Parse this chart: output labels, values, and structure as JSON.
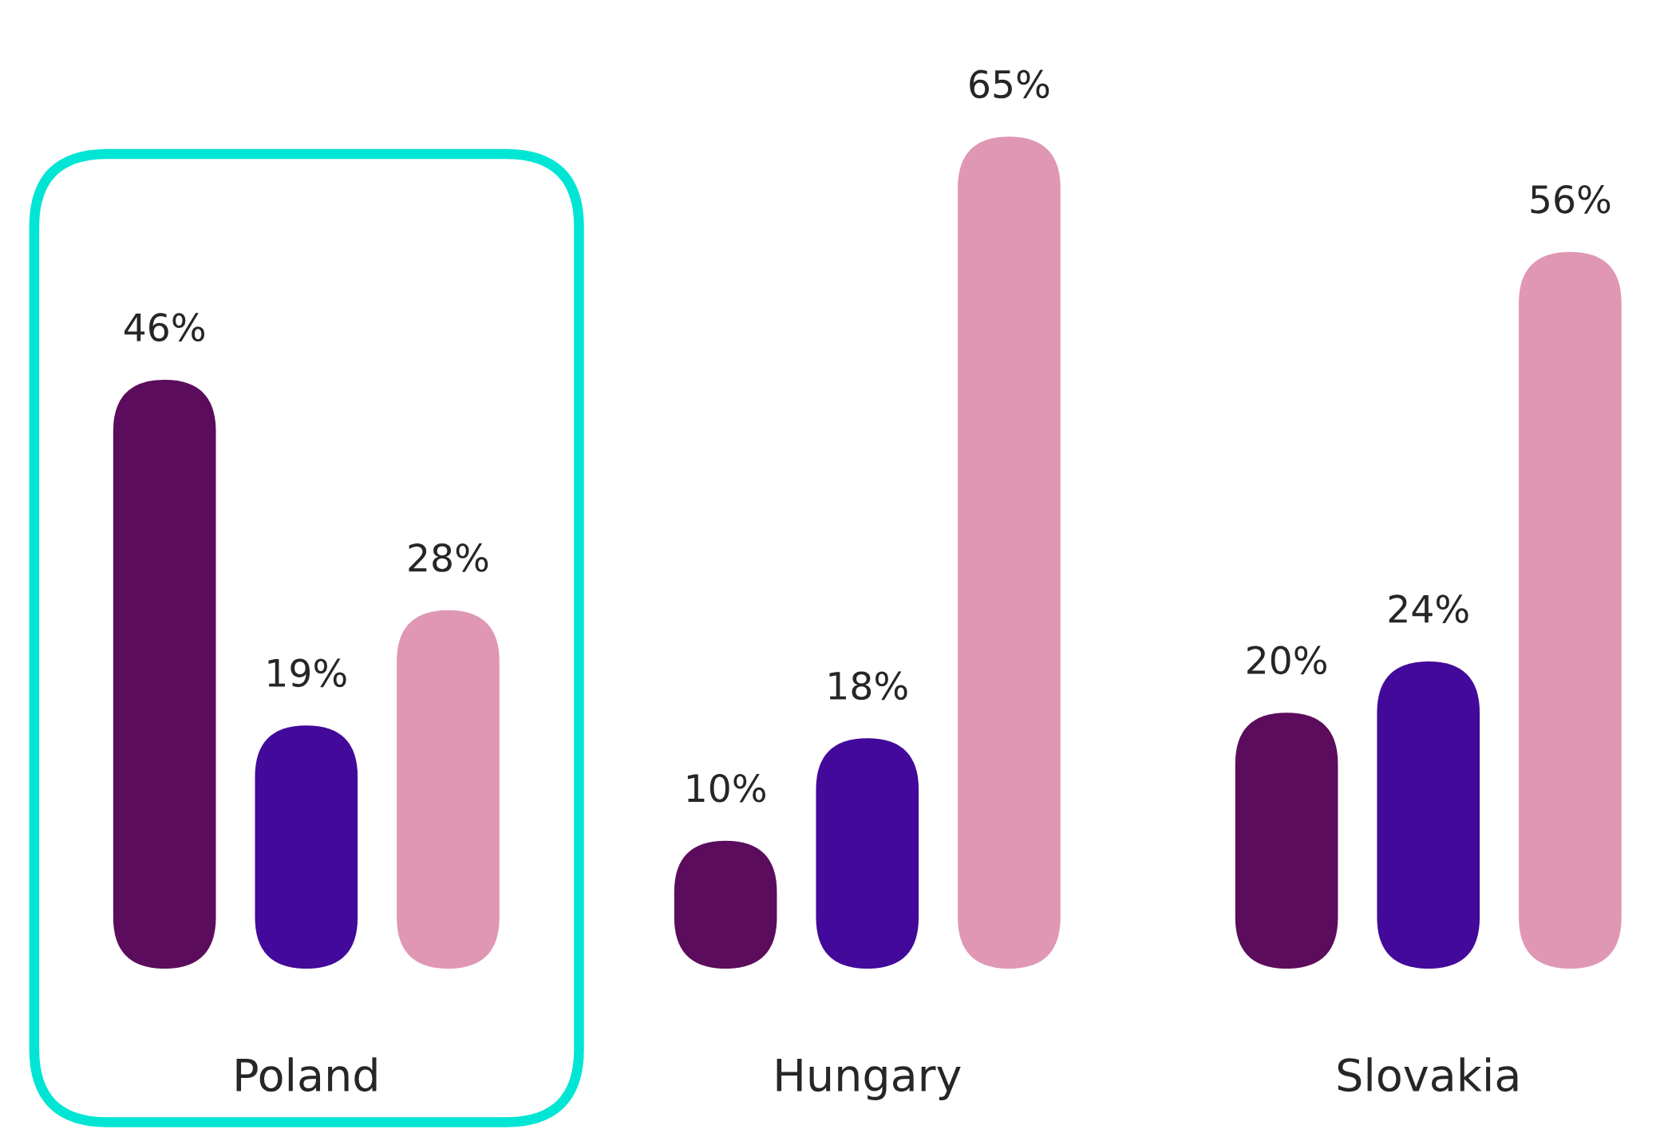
{
  "chart_data": {
    "type": "bar",
    "categories": [
      "Poland",
      "Hungary",
      "Slovakia"
    ],
    "series": [
      {
        "color": "#5c0c5c",
        "values": [
          46,
          10,
          20
        ],
        "value_labels": [
          "46%",
          "10%",
          "20%"
        ]
      },
      {
        "color": "#42099a",
        "values": [
          19,
          18,
          24
        ],
        "value_labels": [
          "19%",
          "18%",
          "24%"
        ]
      },
      {
        "color": "#df97b4",
        "values": [
          28,
          65,
          56
        ],
        "value_labels": [
          "28%",
          "65%",
          "56%"
        ]
      }
    ],
    "tick_labels": "x"
  }
}
